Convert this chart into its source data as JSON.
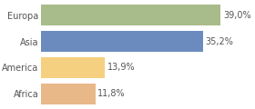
{
  "categories": [
    "Europa",
    "Asia",
    "America",
    "Africa"
  ],
  "values": [
    39.0,
    35.2,
    13.9,
    11.8
  ],
  "labels": [
    "39,0%",
    "35,2%",
    "13,9%",
    "11,8%"
  ],
  "colors": [
    "#a8bb8a",
    "#6b8bbf",
    "#f5d080",
    "#e8b888"
  ],
  "xlim": [
    0,
    46
  ],
  "bar_height": 0.82,
  "background_color": "#ffffff",
  "label_fontsize": 7.0,
  "tick_fontsize": 7.0,
  "figsize": [
    2.8,
    1.2
  ],
  "dpi": 100
}
